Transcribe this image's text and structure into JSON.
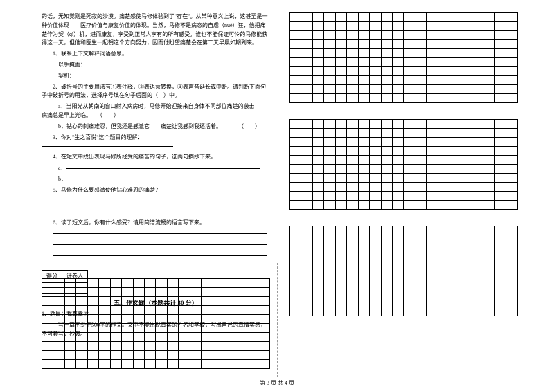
{
  "left": {
    "para1": "的话，无知觉则是死寂的沙漠。痛楚感使马修体验到了\"存在\"。从某种意义上说，这甚至是一种价值体现——医疗价值与康复价值的体现。当然，马修不是病态的自虐（nuè）狂，他把痛楚作为契（qì）机，进而康复，享受到正常人享有的所有感受。谁也不能保证可怜的马修能获得这一天，但他和医生一起朝这个方向努力，因而他盼望痛楚会在第二天早晨如期到来。",
    "q1_head": "1、联系上下文解释词语意思。",
    "q1_a": "以手掩面：",
    "q1_b": "契机：",
    "q2": "2、破折号的主要用法有①表注释，②表语意转换，③表声音延长或中断。请判断下面句子中破折号的用法，选择序号填在句子后面的（　）中。",
    "q2_a": "a．当阳光从朝南的窗口射入病房时，马修开始迎接来自身体不同部位痛楚的袭击——病痛总是早上光临。　　（　　）",
    "q2_b": "b．钻心的刺痛难忍，但我还是感激它——痛楚让我感到我还活着。　　　　（　　）",
    "q3": "3、你对\"生之喜悦\"这个题目的理解：",
    "q4": "4、在短文中找出表现马修所经受的痛苦的句子，选两句摘抄下来。",
    "q4_a": "a．",
    "q4_b": "b．",
    "q5": "5、马修为什么要感激使他钻心难忍的痛楚？",
    "q6": "6、读了短文后，你有什么感受？请用简洁流畅的语言写下来。",
    "score_col1": "得分",
    "score_col2": "评卷人",
    "section5": "五、作文题（本题共计 30 分）",
    "essay_title": "1、题目：我真幸运",
    "essay_req": "写一篇不少于500字的作文。文中不能出现真实的姓名和学校，写出自己的真情实感，不可套写，抄袭。"
  },
  "footer": "第 3 页 共 4 页",
  "grid": {
    "rows": 10,
    "cols": 20
  },
  "colors": {
    "bg": "#ffffff",
    "text": "#000000",
    "line": "#000000"
  }
}
